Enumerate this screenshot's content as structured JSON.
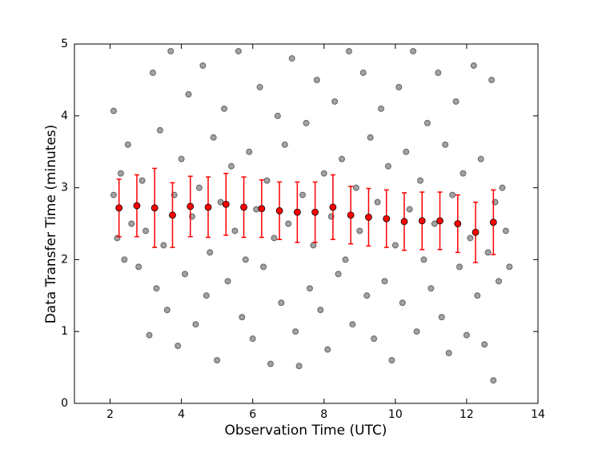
{
  "chart_data": {
    "type": "scatter",
    "xlabel": "Observation Time (UTC)",
    "ylabel": "Data Transfer Time (minutes)",
    "xlim": [
      1,
      14
    ],
    "ylim": [
      0,
      5
    ],
    "xticks": [
      2,
      4,
      6,
      8,
      10,
      12,
      14
    ],
    "yticks": [
      0,
      1,
      2,
      3,
      4,
      5
    ],
    "scatter": {
      "color": "#555555",
      "x": [
        2.1,
        2.2,
        2.3,
        2.1,
        2.4,
        2.5,
        2.6,
        2.8,
        2.9,
        3.0,
        3.1,
        3.2,
        3.3,
        3.4,
        3.5,
        3.6,
        3.7,
        3.8,
        3.9,
        4.0,
        4.1,
        4.2,
        4.3,
        4.4,
        4.5,
        4.6,
        4.7,
        4.8,
        4.9,
        5.0,
        5.1,
        5.2,
        5.3,
        5.4,
        5.5,
        5.6,
        5.7,
        5.8,
        5.9,
        6.0,
        6.1,
        6.2,
        6.3,
        6.4,
        6.5,
        6.6,
        6.7,
        6.8,
        6.9,
        7.0,
        7.1,
        7.2,
        7.3,
        7.4,
        7.5,
        7.6,
        7.7,
        7.8,
        7.9,
        8.0,
        8.1,
        8.2,
        8.3,
        8.4,
        8.5,
        8.6,
        8.7,
        8.8,
        8.9,
        9.0,
        9.1,
        9.2,
        9.3,
        9.4,
        9.5,
        9.6,
        9.7,
        9.8,
        9.9,
        10.0,
        10.1,
        10.2,
        10.3,
        10.4,
        10.5,
        10.6,
        10.7,
        10.8,
        10.9,
        11.0,
        11.1,
        11.2,
        11.3,
        11.4,
        11.5,
        11.6,
        11.7,
        11.8,
        11.9,
        12.0,
        12.1,
        12.2,
        12.3,
        12.4,
        12.5,
        12.6,
        12.7,
        12.75,
        12.8,
        12.9,
        13.0,
        13.1,
        13.2
      ],
      "y": [
        2.9,
        2.3,
        3.2,
        4.07,
        2.0,
        3.6,
        2.5,
        1.9,
        3.1,
        2.4,
        0.95,
        4.6,
        1.6,
        3.8,
        2.2,
        1.3,
        4.9,
        2.9,
        0.8,
        3.4,
        1.8,
        4.3,
        2.6,
        1.1,
        3.0,
        4.7,
        1.5,
        2.1,
        3.7,
        0.6,
        2.8,
        4.1,
        1.7,
        3.3,
        2.4,
        4.9,
        1.2,
        2.0,
        3.5,
        0.9,
        2.7,
        4.4,
        1.9,
        3.1,
        0.55,
        2.3,
        4.0,
        1.4,
        3.6,
        2.5,
        4.8,
        1.0,
        0.52,
        2.9,
        3.9,
        1.6,
        2.2,
        4.5,
        1.3,
        3.2,
        0.75,
        2.6,
        4.2,
        1.8,
        3.4,
        2.0,
        4.9,
        1.1,
        3.0,
        2.4,
        4.6,
        1.5,
        3.7,
        0.9,
        2.8,
        4.1,
        1.7,
        3.3,
        0.6,
        2.2,
        4.4,
        1.4,
        3.5,
        2.7,
        4.9,
        1.0,
        3.1,
        2.0,
        3.9,
        1.6,
        2.5,
        4.6,
        1.2,
        3.6,
        0.7,
        2.9,
        4.2,
        1.9,
        3.2,
        0.95,
        2.3,
        4.7,
        1.5,
        3.4,
        0.82,
        2.1,
        4.5,
        0.32,
        2.8,
        1.7,
        3.0,
        2.4,
        1.9
      ]
    },
    "errorbar": {
      "color": "#ff0000",
      "x": [
        2.25,
        2.75,
        3.25,
        3.75,
        4.25,
        4.75,
        5.25,
        5.75,
        6.25,
        6.75,
        7.25,
        7.75,
        8.25,
        8.75,
        9.25,
        9.75,
        10.25,
        10.75,
        11.25,
        11.75,
        12.25,
        12.75
      ],
      "values": [
        2.72,
        2.75,
        2.72,
        2.62,
        2.74,
        2.73,
        2.77,
        2.73,
        2.71,
        2.68,
        2.66,
        2.66,
        2.73,
        2.62,
        2.59,
        2.57,
        2.53,
        2.54,
        2.54,
        2.5,
        2.38,
        2.52
      ],
      "errors": [
        0.4,
        0.43,
        0.55,
        0.45,
        0.42,
        0.42,
        0.43,
        0.42,
        0.4,
        0.4,
        0.42,
        0.42,
        0.45,
        0.4,
        0.4,
        0.4,
        0.4,
        0.4,
        0.4,
        0.4,
        0.42,
        0.45
      ]
    }
  }
}
